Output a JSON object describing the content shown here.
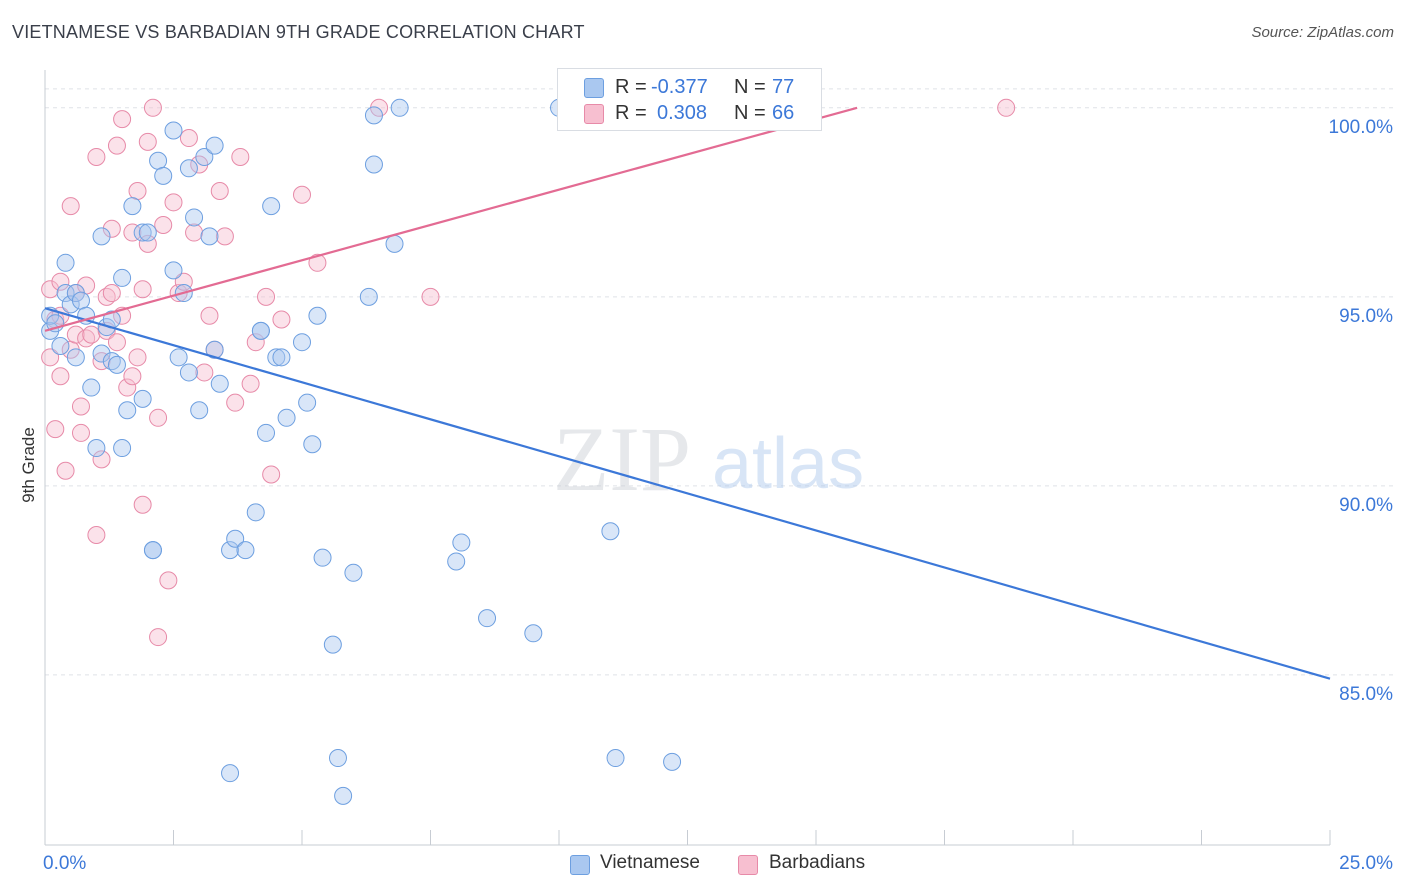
{
  "title": "VIETNAMESE VS BARBADIAN 9TH GRADE CORRELATION CHART",
  "source": "Source: ZipAtlas.com",
  "watermark": {
    "zip": "ZIP",
    "atlas": "atlas"
  },
  "legend": {
    "rows": [
      {
        "r_label": "R =",
        "r_value": "-0.377",
        "n_label": "N =",
        "n_value": "77",
        "color": "#aac8f0",
        "border": "#6d9fe0"
      },
      {
        "r_label": "R =",
        "r_value": "0.308",
        "n_label": "N =",
        "n_value": "66",
        "color": "#f7bfd0",
        "border": "#e78aa8"
      }
    ]
  },
  "bottom_legend": [
    "Vietnamese",
    "Barbadians"
  ],
  "chart_data": {
    "type": "scatter",
    "title": "VIETNAMESE VS BARBADIAN 9TH GRADE CORRELATION CHART",
    "xlabel": "",
    "ylabel": "9th Grade",
    "xlim": [
      0,
      25
    ],
    "ylim": [
      80.5,
      101
    ],
    "x_tick_labels": [
      "0.0%",
      "25.0%"
    ],
    "y_ticks": [
      85,
      90,
      95,
      100
    ],
    "y_tick_labels": [
      "85.0%",
      "90.0%",
      "95.0%",
      "100.0%"
    ],
    "grid": true,
    "colors": {
      "vietnamese": "#3c78d8",
      "barbadians": "#e36b93",
      "axis_text": "#3c78d8"
    },
    "series": [
      {
        "name": "Vietnamese",
        "trend": [
          [
            0,
            94.7
          ],
          [
            25,
            84.9
          ]
        ],
        "x": [
          0.1,
          0.1,
          0.2,
          0.3,
          0.4,
          0.4,
          0.5,
          0.6,
          0.6,
          0.7,
          0.8,
          0.9,
          1.0,
          1.1,
          1.1,
          1.2,
          1.3,
          1.3,
          1.4,
          1.5,
          1.5,
          1.6,
          1.7,
          1.9,
          1.9,
          2.0,
          2.1,
          2.1,
          2.2,
          2.3,
          2.5,
          2.5,
          2.6,
          2.7,
          2.8,
          2.8,
          2.9,
          3.0,
          3.1,
          3.2,
          3.3,
          3.3,
          3.4,
          3.6,
          3.6,
          3.7,
          3.9,
          4.1,
          4.2,
          4.2,
          4.3,
          4.4,
          4.5,
          4.6,
          4.7,
          5.0,
          5.1,
          5.2,
          5.3,
          5.4,
          5.6,
          5.7,
          5.8,
          6.0,
          6.3,
          6.4,
          6.4,
          6.8,
          6.9,
          8.0,
          8.1,
          8.6,
          9.5,
          10.0,
          11.0,
          11.1,
          12.2
        ],
        "y": [
          94.1,
          94.5,
          94.3,
          93.7,
          95.9,
          95.1,
          94.8,
          95.1,
          93.4,
          94.9,
          94.5,
          92.6,
          91.0,
          96.6,
          93.5,
          94.2,
          94.4,
          93.3,
          93.2,
          95.5,
          91.0,
          92.0,
          97.4,
          96.7,
          92.3,
          96.7,
          88.3,
          88.3,
          98.6,
          98.2,
          95.7,
          99.4,
          93.4,
          95.1,
          98.4,
          93.0,
          97.1,
          92.0,
          98.7,
          96.6,
          99.0,
          93.6,
          92.7,
          82.4,
          88.3,
          88.6,
          88.3,
          89.3,
          94.1,
          94.1,
          91.4,
          97.4,
          93.4,
          93.4,
          91.8,
          93.8,
          92.2,
          91.1,
          94.5,
          88.1,
          85.8,
          82.8,
          81.8,
          87.7,
          95.0,
          99.8,
          98.5,
          96.4,
          100.0,
          88.0,
          88.5,
          86.5,
          86.1,
          100.0,
          88.8,
          82.8,
          82.7
        ]
      },
      {
        "name": "Barbadians",
        "trend": [
          [
            0,
            94.1
          ],
          [
            15.8,
            100.0
          ]
        ],
        "x": [
          0.1,
          0.1,
          0.2,
          0.2,
          0.3,
          0.3,
          0.3,
          0.4,
          0.5,
          0.5,
          0.6,
          0.6,
          0.7,
          0.7,
          0.8,
          0.8,
          0.9,
          1.0,
          1.0,
          1.1,
          1.1,
          1.2,
          1.2,
          1.3,
          1.3,
          1.4,
          1.4,
          1.5,
          1.5,
          1.6,
          1.7,
          1.7,
          1.8,
          1.8,
          1.9,
          1.9,
          2.0,
          2.0,
          2.1,
          2.2,
          2.2,
          2.3,
          2.4,
          2.5,
          2.6,
          2.7,
          2.8,
          2.9,
          3.0,
          3.1,
          3.2,
          3.3,
          3.4,
          3.5,
          3.7,
          3.8,
          4.0,
          4.1,
          4.3,
          4.4,
          4.6,
          5.0,
          5.3,
          6.5,
          7.5,
          18.7
        ],
        "y": [
          95.2,
          93.4,
          94.4,
          91.5,
          95.4,
          92.9,
          94.5,
          90.4,
          97.4,
          93.6,
          94.0,
          95.1,
          92.1,
          91.4,
          93.9,
          95.3,
          94.0,
          88.7,
          98.7,
          93.3,
          90.7,
          94.1,
          95.0,
          96.8,
          95.1,
          99.0,
          93.8,
          94.5,
          99.7,
          92.6,
          96.7,
          92.9,
          93.4,
          97.8,
          89.5,
          95.2,
          99.1,
          96.4,
          100.0,
          91.8,
          86.0,
          96.9,
          87.5,
          97.5,
          95.1,
          95.4,
          99.2,
          96.7,
          98.5,
          93.0,
          94.5,
          93.6,
          97.8,
          96.6,
          92.2,
          98.7,
          92.7,
          93.8,
          95.0,
          90.3,
          94.4,
          97.7,
          95.9,
          100.0,
          95.0,
          100.0
        ]
      }
    ]
  }
}
